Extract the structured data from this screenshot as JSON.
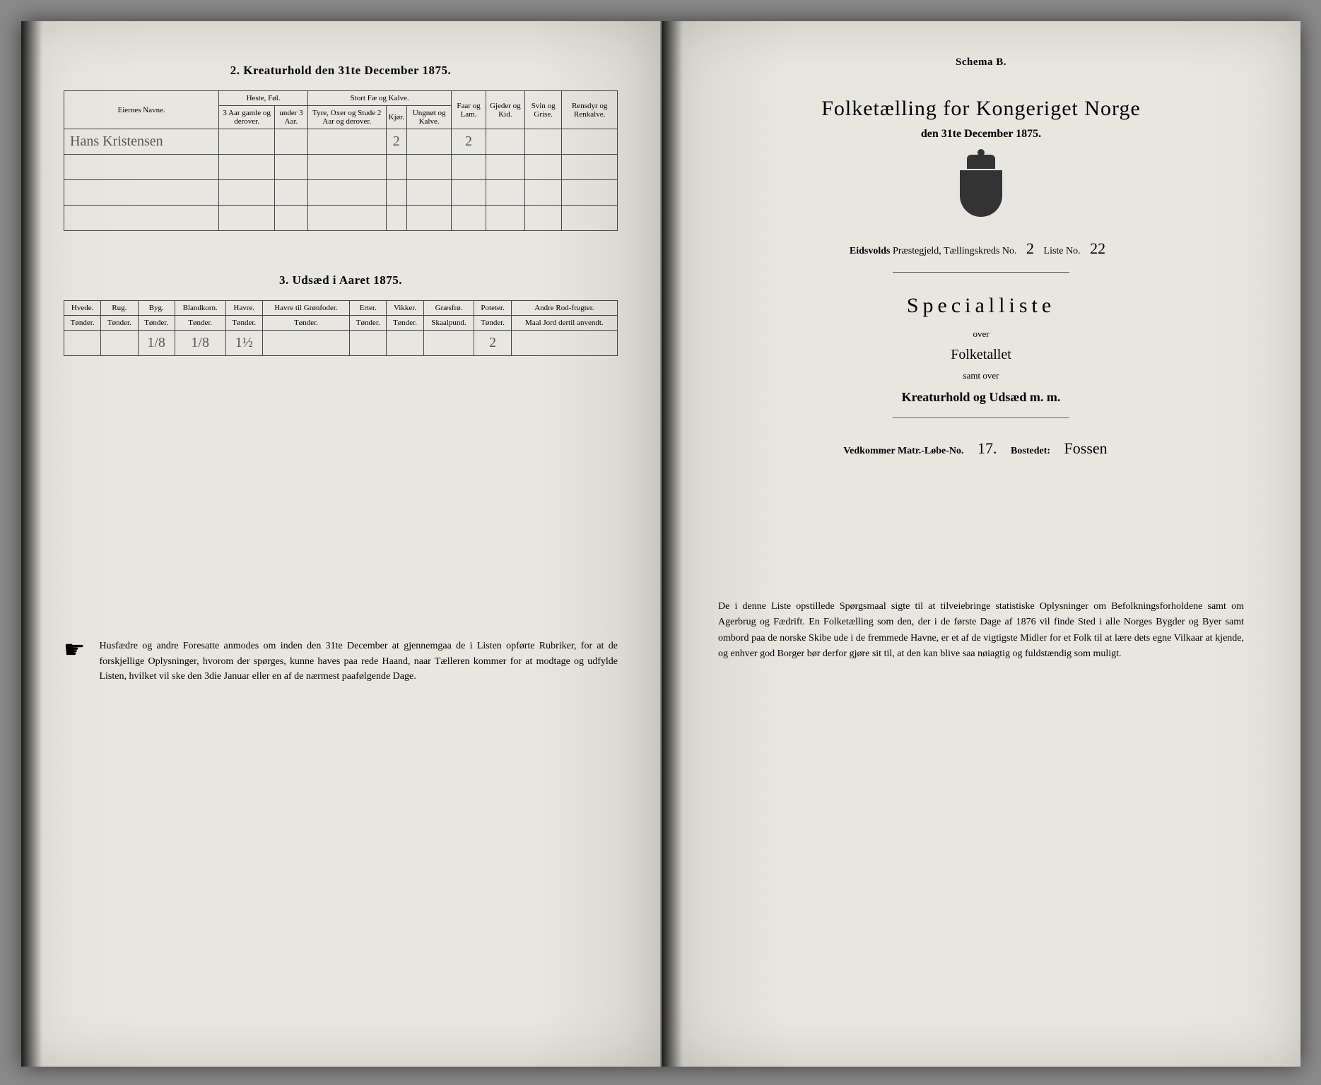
{
  "left": {
    "section2": {
      "title": "2.  Kreaturhold den 31te December 1875.",
      "headers": {
        "owner": "Eiernes Navne.",
        "horse_group": "Heste, Føl.",
        "horse_a": "3 Aar gamle og derover.",
        "horse_b": "under 3 Aar.",
        "cattle_group": "Stort Fæ og Kalve.",
        "cattle_a": "Tyre, Oxer og Stude 2 Aar og derover.",
        "cattle_b": "Kjør.",
        "cattle_c": "Ungnøt og Kalve.",
        "sheep": "Faar og Lam.",
        "goats": "Gjeder og Kid.",
        "pigs": "Svin og Grise.",
        "reindeer": "Rensdyr og Renkalve."
      },
      "row": {
        "owner": "Hans Kristensen",
        "horse_a": "",
        "horse_b": "",
        "cattle_a": "",
        "cattle_b": "2",
        "cattle_c": "",
        "sheep": "2",
        "goats": "",
        "pigs": "",
        "reindeer": ""
      }
    },
    "section3": {
      "title": "3.  Udsæd i Aaret 1875.",
      "cols": [
        {
          "h": "Hvede.",
          "u": "Tønder."
        },
        {
          "h": "Rug.",
          "u": "Tønder."
        },
        {
          "h": "Byg.",
          "u": "Tønder."
        },
        {
          "h": "Blandkorn.",
          "u": "Tønder."
        },
        {
          "h": "Havre.",
          "u": "Tønder."
        },
        {
          "h": "Havre til Grønfoder.",
          "u": "Tønder."
        },
        {
          "h": "Erter.",
          "u": "Tønder."
        },
        {
          "h": "Vikker.",
          "u": "Tønder."
        },
        {
          "h": "Græsfrø.",
          "u": "Skaalpund."
        },
        {
          "h": "Poteter.",
          "u": "Tønder."
        },
        {
          "h": "Andre Rod-frugter.",
          "u": "Maal Jord dertil anvendt."
        }
      ],
      "row": [
        "",
        "",
        "1/8",
        "1/8",
        "1½",
        "",
        "",
        "",
        "",
        "2",
        ""
      ]
    },
    "note": "Husfædre og andre Foresatte anmodes om inden den 31te December at gjennemgaa de i Listen opførte Rubriker, for at de forskjellige Oplysninger, hvorom der spørges, kunne haves paa rede Haand, naar Tælleren kommer for at modtage og udfylde Listen, hvilket vil ske den 3die Januar eller en af de nærmest paafølgende Dage."
  },
  "right": {
    "schema": "Schema B.",
    "title": "Folketælling for Kongeriget Norge",
    "subtitle": "den 31te December 1875.",
    "parish_label": "Eidsvolds",
    "parish_word1": "Præstegjeld,",
    "parish_word2": "Tællingskreds No.",
    "kreds_no": "2",
    "liste_label": "Liste No.",
    "liste_no": "22",
    "special": "Specialliste",
    "over1": "over",
    "line1": "Folketallet",
    "over2": "samt over",
    "line2": "Kreaturhold og Udsæd m. m.",
    "ved_label": "Vedkommer Matr.-Løbe-No.",
    "ved_no": "17.",
    "bosted_label": "Bostedet:",
    "bosted_val": "Fossen",
    "para": "De i denne Liste opstillede Spørgsmaal sigte til at tilveiebringe statistiske Oplysninger om Befolkningsforholdene samt om Agerbrug og Fædrift. En Folketælling som den, der i de første Dage af 1876 vil finde Sted i alle Norges Bygder og Byer samt ombord paa de norske Skibe ude i de fremmede Havne, er et af de vigtigste Midler for et Folk til at lære dets egne Vilkaar at kjende, og enhver god Borger bør derfor gjøre sit til, at den kan blive saa nøiagtig og fuldstændig som muligt."
  }
}
